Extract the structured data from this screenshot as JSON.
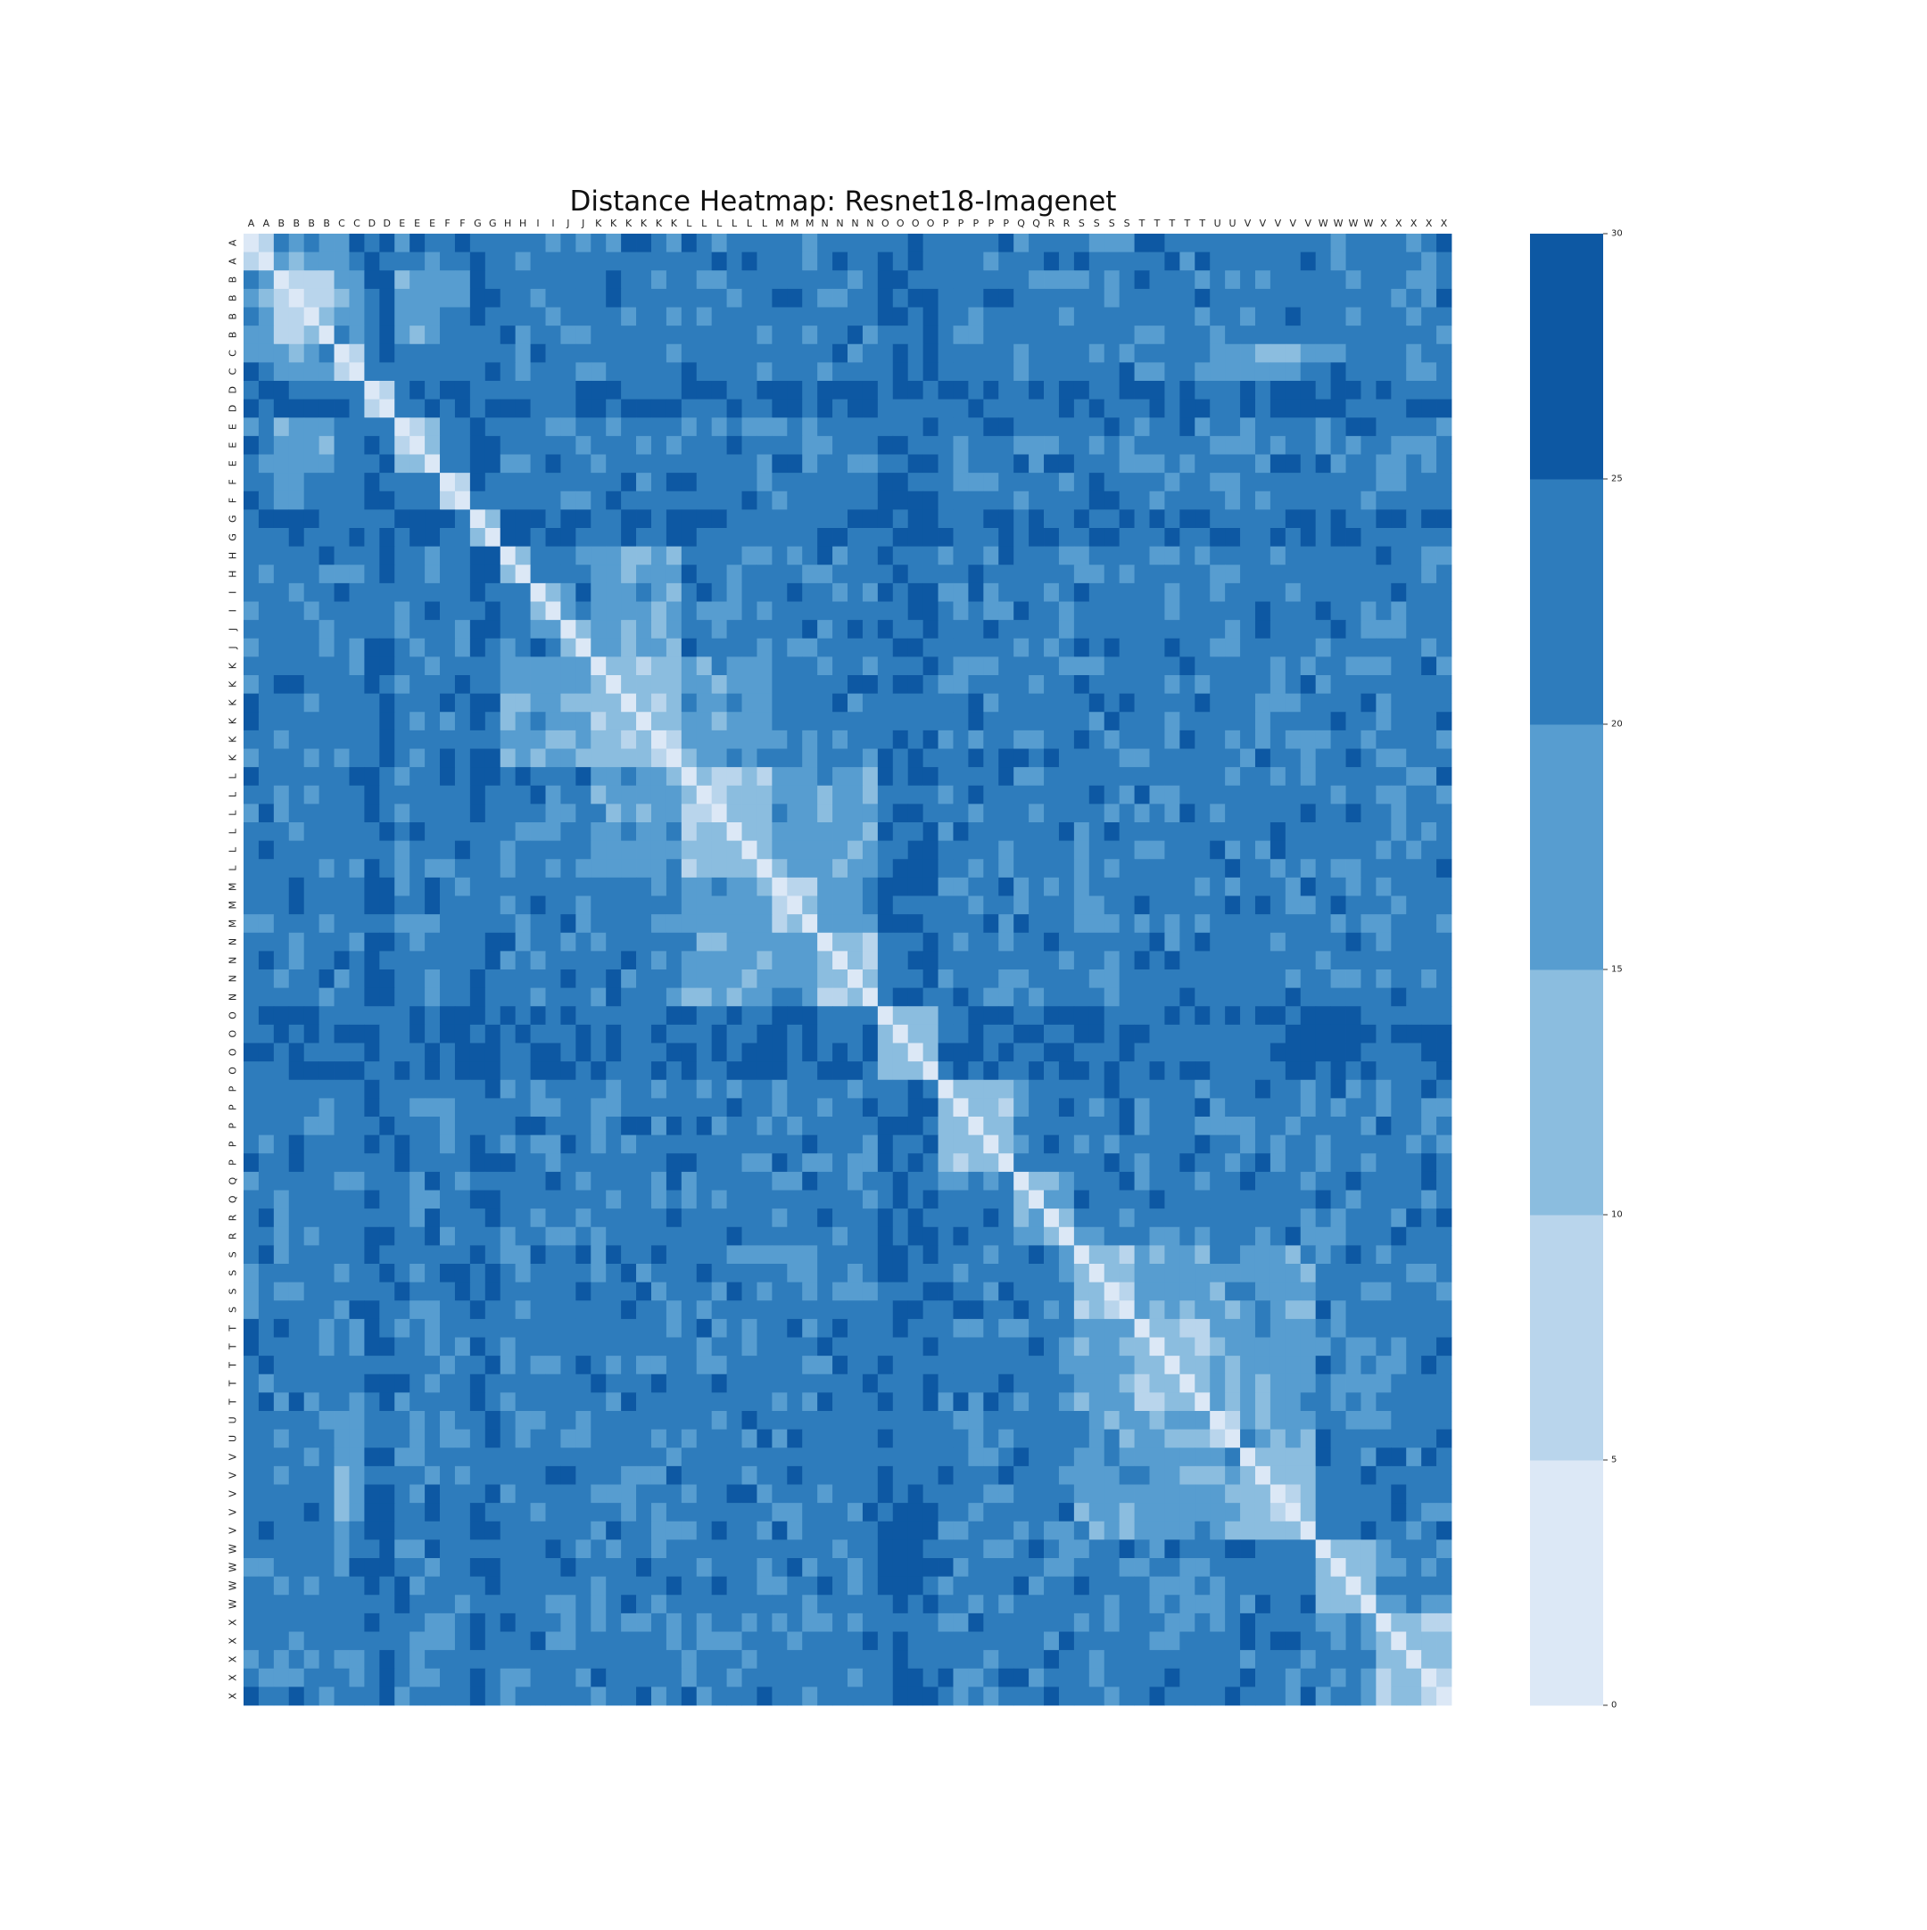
{
  "chart_data": {
    "type": "heatmap",
    "title": "Distance Heatmap: Resnet18-Imagenet",
    "row_labels": [
      "A",
      "A",
      "B",
      "B",
      "B",
      "B",
      "C",
      "C",
      "D",
      "D",
      "E",
      "E",
      "E",
      "F",
      "F",
      "G",
      "G",
      "H",
      "H",
      "I",
      "I",
      "J",
      "J",
      "K",
      "K",
      "K",
      "K",
      "K",
      "K",
      "L",
      "L",
      "L",
      "L",
      "L",
      "L",
      "M",
      "M",
      "M",
      "N",
      "N",
      "N",
      "N",
      "O",
      "O",
      "O",
      "O",
      "P",
      "P",
      "P",
      "P",
      "P",
      "Q",
      "Q",
      "R",
      "R",
      "S",
      "S",
      "S",
      "S",
      "T",
      "T",
      "T",
      "T",
      "T",
      "U",
      "U",
      "V",
      "V",
      "V",
      "V",
      "V",
      "W",
      "W",
      "W",
      "W",
      "X",
      "X",
      "X",
      "X",
      "X"
    ],
    "col_labels": [
      "A",
      "A",
      "B",
      "B",
      "B",
      "B",
      "C",
      "C",
      "D",
      "D",
      "E",
      "E",
      "E",
      "F",
      "F",
      "G",
      "G",
      "H",
      "H",
      "I",
      "I",
      "J",
      "J",
      "K",
      "K",
      "K",
      "K",
      "K",
      "K",
      "L",
      "L",
      "L",
      "L",
      "L",
      "L",
      "M",
      "M",
      "M",
      "N",
      "N",
      "N",
      "N",
      "O",
      "O",
      "O",
      "O",
      "P",
      "P",
      "P",
      "P",
      "P",
      "Q",
      "Q",
      "R",
      "R",
      "S",
      "S",
      "S",
      "S",
      "T",
      "T",
      "T",
      "T",
      "T",
      "U",
      "U",
      "V",
      "V",
      "V",
      "V",
      "V",
      "W",
      "W",
      "W",
      "W",
      "X",
      "X",
      "X",
      "X",
      "X"
    ],
    "colorbar": {
      "min": 0,
      "max": 30,
      "ticks": [
        0,
        5,
        10,
        15,
        20,
        25,
        30
      ],
      "bins": [
        {
          "from": 0,
          "to": 5,
          "color": "#dce8f6"
        },
        {
          "from": 5,
          "to": 10,
          "color": "#b9d5ec"
        },
        {
          "from": 10,
          "to": 15,
          "color": "#8bbddf"
        },
        {
          "from": 15,
          "to": 20,
          "color": "#579dd0"
        },
        {
          "from": 20,
          "to": 25,
          "color": "#2e7cbc"
        },
        {
          "from": 25,
          "to": 30,
          "color": "#0d58a3"
        }
      ]
    },
    "groups": [
      {
        "label": "A",
        "count": 2
      },
      {
        "label": "B",
        "count": 4
      },
      {
        "label": "C",
        "count": 2
      },
      {
        "label": "D",
        "count": 2
      },
      {
        "label": "E",
        "count": 3
      },
      {
        "label": "F",
        "count": 2
      },
      {
        "label": "G",
        "count": 2
      },
      {
        "label": "H",
        "count": 2
      },
      {
        "label": "I",
        "count": 2
      },
      {
        "label": "J",
        "count": 2
      },
      {
        "label": "K",
        "count": 6
      },
      {
        "label": "L",
        "count": 6
      },
      {
        "label": "M",
        "count": 3
      },
      {
        "label": "N",
        "count": 4
      },
      {
        "label": "O",
        "count": 4
      },
      {
        "label": "P",
        "count": 5
      },
      {
        "label": "Q",
        "count": 2
      },
      {
        "label": "R",
        "count": 2
      },
      {
        "label": "S",
        "count": 4
      },
      {
        "label": "T",
        "count": 5
      },
      {
        "label": "U",
        "count": 2
      },
      {
        "label": "V",
        "count": 5
      },
      {
        "label": "W",
        "count": 4
      },
      {
        "label": "X",
        "count": 5
      }
    ],
    "block_values": {
      "diagonal": 0,
      "within_group": 8,
      "tight_groups_within": 12,
      "tight_groups": [
        "H",
        "I",
        "J",
        "K",
        "L",
        "N",
        "O",
        "P",
        "S",
        "T",
        "V",
        "W",
        "X"
      ],
      "near_pairs_value": 17,
      "near_pairs": [
        [
          "B",
          "C"
        ],
        [
          "H",
          "K"
        ],
        [
          "I",
          "K"
        ],
        [
          "J",
          "K"
        ],
        [
          "K",
          "L"
        ],
        [
          "L",
          "M"
        ],
        [
          "L",
          "N"
        ],
        [
          "M",
          "N"
        ],
        [
          "N",
          "L"
        ],
        [
          "Q",
          "R"
        ],
        [
          "S",
          "T"
        ],
        [
          "S",
          "U"
        ],
        [
          "S",
          "V"
        ],
        [
          "T",
          "U"
        ],
        [
          "T",
          "V"
        ],
        [
          "U",
          "V"
        ],
        [
          "A",
          "B"
        ],
        [
          "B",
          "E"
        ],
        [
          "C",
          "U"
        ],
        [
          "C",
          "V"
        ]
      ],
      "far_value": 22,
      "very_far_value": 27,
      "very_far_groups": [
        "D",
        "G",
        "O"
      ]
    }
  }
}
